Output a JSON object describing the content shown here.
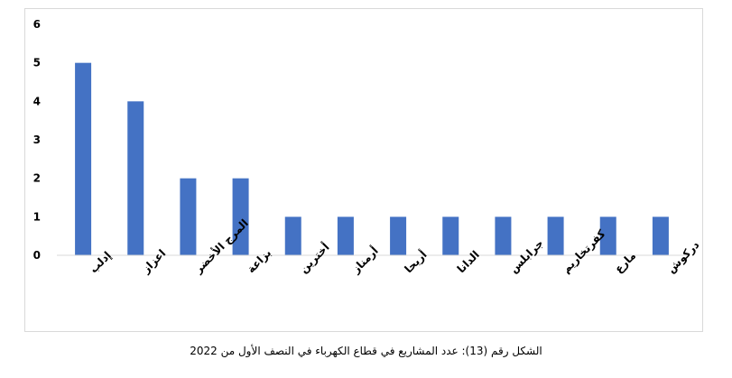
{
  "chart_data": {
    "type": "bar",
    "title": "",
    "xlabel": "",
    "ylabel": "",
    "categories": [
      "إدلب",
      "اعزاز",
      "المرج الأخضر",
      "بزاعة",
      "أخترين",
      "أرمناز",
      "أريحا",
      "الدانا",
      "جرابلس",
      "كفرتخاريم",
      "مارع",
      "دركوش"
    ],
    "values": [
      5,
      4,
      2,
      2,
      1,
      1,
      1,
      1,
      1,
      1,
      1,
      1
    ],
    "ylim": [
      0,
      6
    ],
    "yticks": [
      "0",
      "1",
      "2",
      "3",
      "4",
      "5",
      "6"
    ],
    "bar_color": "#4472c4",
    "grid": false,
    "legend": "none"
  },
  "caption": "الشكل رقم (13): عدد المشاريع في قطاع الكهرباء في النصف الأول من 2022"
}
